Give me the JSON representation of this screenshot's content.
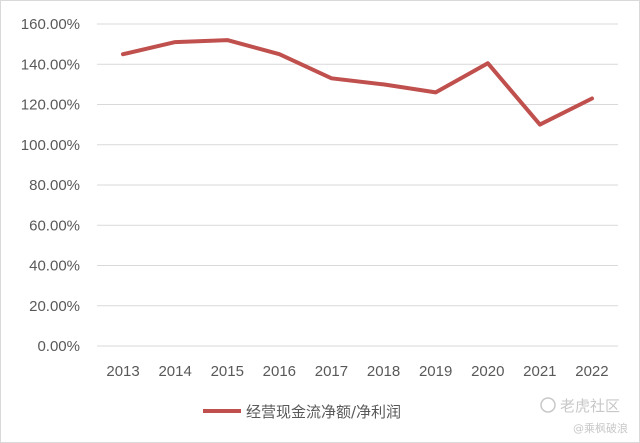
{
  "chart_data": {
    "type": "line",
    "title": "",
    "xlabel": "",
    "ylabel": "",
    "categories": [
      "2013",
      "2014",
      "2015",
      "2016",
      "2017",
      "2018",
      "2019",
      "2020",
      "2021",
      "2022"
    ],
    "yticks": [
      "0.00%",
      "20.00%",
      "40.00%",
      "60.00%",
      "80.00%",
      "100.00%",
      "120.00%",
      "140.00%",
      "160.00%"
    ],
    "ylim": [
      0,
      160
    ],
    "grid": true,
    "legend_position": "bottom",
    "series": [
      {
        "name": "经营现金流净额/净利润",
        "color": "#c0504d",
        "values": [
          145,
          151,
          152,
          145,
          133,
          130,
          126,
          140.5,
          110,
          123
        ]
      }
    ]
  },
  "watermark": {
    "logo_text": "老虎社区",
    "handle": "@乘枫破浪"
  }
}
